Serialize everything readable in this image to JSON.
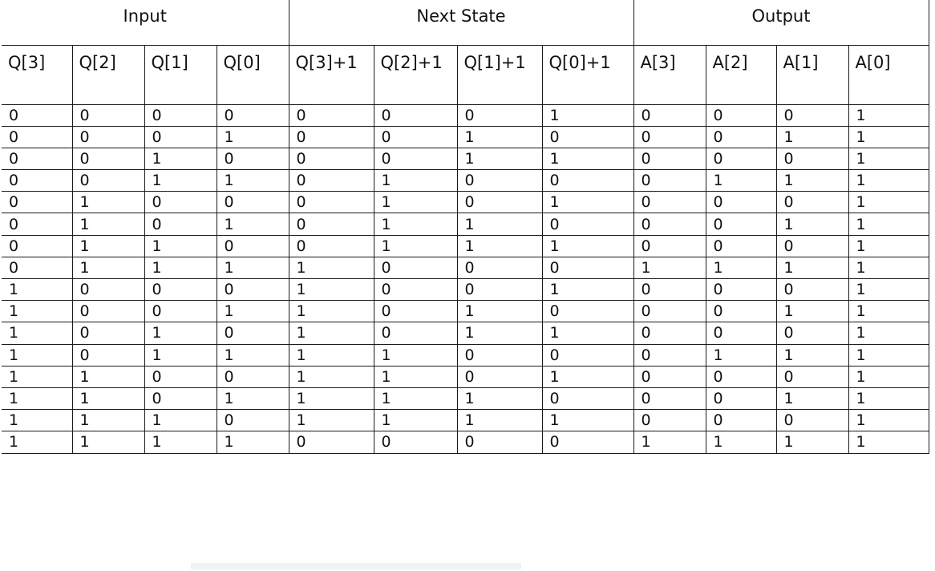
{
  "groups": {
    "input": "Input",
    "next_state": "Next State",
    "output": "Output"
  },
  "columns": [
    "Q[3]",
    "Q[2]",
    "Q[1]",
    "Q[0]",
    "Q[3]+1",
    "Q[2]+1",
    "Q[1]+1",
    "Q[0]+1",
    "A[3]",
    "A[2]",
    "A[1]",
    "A[0]"
  ],
  "rows": [
    [
      "0",
      "0",
      "0",
      "0",
      "0",
      "0",
      "0",
      "1",
      "0",
      "0",
      "0",
      "1"
    ],
    [
      "0",
      "0",
      "0",
      "1",
      "0",
      "0",
      "1",
      "0",
      "0",
      "0",
      "1",
      "1"
    ],
    [
      "0",
      "0",
      "1",
      "0",
      "0",
      "0",
      "1",
      "1",
      "0",
      "0",
      "0",
      "1"
    ],
    [
      "0",
      "0",
      "1",
      "1",
      "0",
      "1",
      "0",
      "0",
      "0",
      "1",
      "1",
      "1"
    ],
    [
      "0",
      "1",
      "0",
      "0",
      "0",
      "1",
      "0",
      "1",
      "0",
      "0",
      "0",
      "1"
    ],
    [
      "0",
      "1",
      "0",
      "1",
      "0",
      "1",
      "1",
      "0",
      "0",
      "0",
      "1",
      "1"
    ],
    [
      "0",
      "1",
      "1",
      "0",
      "0",
      "1",
      "1",
      "1",
      "0",
      "0",
      "0",
      "1"
    ],
    [
      "0",
      "1",
      "1",
      "1",
      "1",
      "0",
      "0",
      "0",
      "1",
      "1",
      "1",
      "1"
    ],
    [
      "1",
      "0",
      "0",
      "0",
      "1",
      "0",
      "0",
      "1",
      "0",
      "0",
      "0",
      "1"
    ],
    [
      "1",
      "0",
      "0",
      "1",
      "1",
      "0",
      "1",
      "0",
      "0",
      "0",
      "1",
      "1"
    ],
    [
      "1",
      "0",
      "1",
      "0",
      "1",
      "0",
      "1",
      "1",
      "0",
      "0",
      "0",
      "1"
    ],
    [
      "1",
      "0",
      "1",
      "1",
      "1",
      "1",
      "0",
      "0",
      "0",
      "1",
      "1",
      "1"
    ],
    [
      "1",
      "1",
      "0",
      "0",
      "1",
      "1",
      "0",
      "1",
      "0",
      "0",
      "0",
      "1"
    ],
    [
      "1",
      "1",
      "0",
      "1",
      "1",
      "1",
      "1",
      "0",
      "0",
      "0",
      "1",
      "1"
    ],
    [
      "1",
      "1",
      "1",
      "0",
      "1",
      "1",
      "1",
      "1",
      "0",
      "0",
      "0",
      "1"
    ],
    [
      "1",
      "1",
      "1",
      "1",
      "0",
      "0",
      "0",
      "0",
      "1",
      "1",
      "1",
      "1"
    ]
  ]
}
